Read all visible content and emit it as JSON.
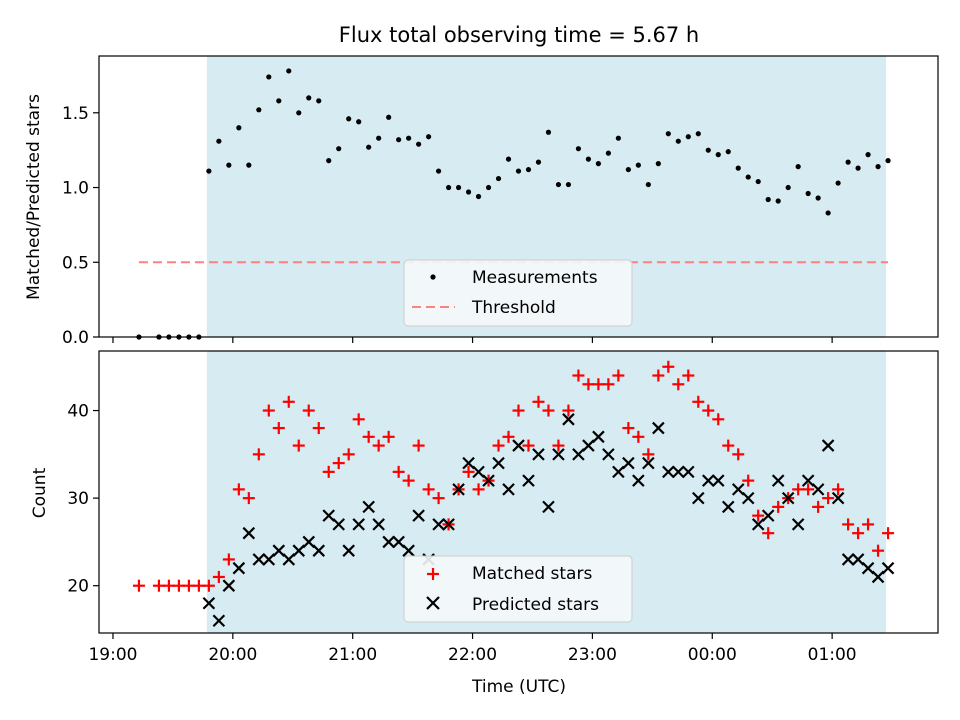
{
  "chart_data": [
    {
      "type": "scatter",
      "title": "Flux total observing time = 5.67 h",
      "xlabel": "",
      "ylabel": "Matched/Predicted stars",
      "xlim": [
        "18:53",
        "01:53"
      ],
      "ylim": [
        0,
        1.88
      ],
      "yticks": [
        0.0,
        0.5,
        1.0,
        1.5
      ],
      "ytick_labels": [
        "0.0",
        "0.5",
        "1.0",
        "1.5"
      ],
      "shaded_x": [
        "19:47",
        "01:27"
      ],
      "series": [
        {
          "name": "Measurements",
          "style": "dot",
          "color": "#000000",
          "points": [
            [
              "19:13",
              0.0
            ],
            [
              "19:23",
              0.0
            ],
            [
              "19:28",
              0.0
            ],
            [
              "19:33",
              0.0
            ],
            [
              "19:38",
              0.0
            ],
            [
              "19:43",
              0.0
            ],
            [
              "19:48",
              1.11
            ],
            [
              "19:53",
              1.31
            ],
            [
              "19:58",
              1.15
            ],
            [
              "20:03",
              1.4
            ],
            [
              "20:08",
              1.15
            ],
            [
              "20:13",
              1.52
            ],
            [
              "20:18",
              1.74
            ],
            [
              "20:23",
              1.58
            ],
            [
              "20:28",
              1.78
            ],
            [
              "20:33",
              1.5
            ],
            [
              "20:38",
              1.6
            ],
            [
              "20:43",
              1.58
            ],
            [
              "20:48",
              1.18
            ],
            [
              "20:53",
              1.26
            ],
            [
              "20:58",
              1.46
            ],
            [
              "21:03",
              1.44
            ],
            [
              "21:08",
              1.27
            ],
            [
              "21:13",
              1.33
            ],
            [
              "21:18",
              1.47
            ],
            [
              "21:23",
              1.32
            ],
            [
              "21:28",
              1.33
            ],
            [
              "21:33",
              1.29
            ],
            [
              "21:38",
              1.34
            ],
            [
              "21:43",
              1.11
            ],
            [
              "21:48",
              1.0
            ],
            [
              "21:53",
              1.0
            ],
            [
              "21:58",
              0.97
            ],
            [
              "22:03",
              0.94
            ],
            [
              "22:08",
              1.0
            ],
            [
              "22:13",
              1.06
            ],
            [
              "22:18",
              1.19
            ],
            [
              "22:23",
              1.11
            ],
            [
              "22:28",
              1.12
            ],
            [
              "22:33",
              1.17
            ],
            [
              "22:38",
              1.37
            ],
            [
              "22:43",
              1.02
            ],
            [
              "22:48",
              1.02
            ],
            [
              "22:53",
              1.26
            ],
            [
              "22:58",
              1.19
            ],
            [
              "23:03",
              1.16
            ],
            [
              "23:08",
              1.23
            ],
            [
              "23:13",
              1.33
            ],
            [
              "23:18",
              1.12
            ],
            [
              "23:23",
              1.15
            ],
            [
              "23:28",
              1.02
            ],
            [
              "23:33",
              1.16
            ],
            [
              "23:38",
              1.36
            ],
            [
              "23:43",
              1.31
            ],
            [
              "23:48",
              1.34
            ],
            [
              "23:53",
              1.36
            ],
            [
              "23:58",
              1.25
            ],
            [
              "00:03",
              1.22
            ],
            [
              "00:08",
              1.24
            ],
            [
              "00:13",
              1.13
            ],
            [
              "00:18",
              1.07
            ],
            [
              "00:23",
              1.04
            ],
            [
              "00:28",
              0.92
            ],
            [
              "00:33",
              0.91
            ],
            [
              "00:38",
              1.0
            ],
            [
              "00:43",
              1.14
            ],
            [
              "00:48",
              0.96
            ],
            [
              "00:53",
              0.93
            ],
            [
              "00:58",
              0.83
            ],
            [
              "01:03",
              1.03
            ],
            [
              "01:08",
              1.17
            ],
            [
              "01:13",
              1.13
            ],
            [
              "01:18",
              1.22
            ],
            [
              "01:23",
              1.14
            ],
            [
              "01:28",
              1.18
            ]
          ]
        },
        {
          "name": "Threshold",
          "style": "dashed-line",
          "color": "#ff8080",
          "points": [
            [
              "19:13",
              0.5
            ],
            [
              "01:28",
              0.5
            ]
          ]
        }
      ],
      "legend": "lower-center"
    },
    {
      "type": "scatter",
      "title": "",
      "xlabel": "Time (UTC)",
      "ylabel": "Count",
      "xlim": [
        "18:53",
        "01:53"
      ],
      "xticks": [
        "19:00",
        "20:00",
        "21:00",
        "22:00",
        "23:00",
        "00:00",
        "01:00"
      ],
      "ylim": [
        14.6,
        46.8
      ],
      "yticks": [
        20,
        30,
        40
      ],
      "shaded_x": [
        "19:47",
        "01:27"
      ],
      "series": [
        {
          "name": "Matched stars",
          "style": "plus",
          "color": "#ff0000",
          "points": [
            [
              "19:13",
              20
            ],
            [
              "19:23",
              20
            ],
            [
              "19:28",
              20
            ],
            [
              "19:33",
              20
            ],
            [
              "19:38",
              20
            ],
            [
              "19:43",
              20
            ],
            [
              "19:48",
              20
            ],
            [
              "19:53",
              21
            ],
            [
              "19:58",
              23
            ],
            [
              "20:03",
              31
            ],
            [
              "20:08",
              30
            ],
            [
              "20:13",
              35
            ],
            [
              "20:18",
              40
            ],
            [
              "20:23",
              38
            ],
            [
              "20:28",
              41
            ],
            [
              "20:33",
              36
            ],
            [
              "20:38",
              40
            ],
            [
              "20:43",
              38
            ],
            [
              "20:48",
              33
            ],
            [
              "20:53",
              34
            ],
            [
              "20:58",
              35
            ],
            [
              "21:03",
              39
            ],
            [
              "21:08",
              37
            ],
            [
              "21:13",
              36
            ],
            [
              "21:18",
              37
            ],
            [
              "21:23",
              33
            ],
            [
              "21:28",
              32
            ],
            [
              "21:33",
              36
            ],
            [
              "21:38",
              31
            ],
            [
              "21:43",
              30
            ],
            [
              "21:48",
              27
            ],
            [
              "21:53",
              31
            ],
            [
              "21:58",
              33
            ],
            [
              "22:03",
              31
            ],
            [
              "22:08",
              32
            ],
            [
              "22:13",
              36
            ],
            [
              "22:18",
              37
            ],
            [
              "22:23",
              40
            ],
            [
              "22:28",
              36
            ],
            [
              "22:33",
              41
            ],
            [
              "22:38",
              40
            ],
            [
              "22:43",
              36
            ],
            [
              "22:48",
              40
            ],
            [
              "22:53",
              44
            ],
            [
              "22:58",
              43
            ],
            [
              "23:03",
              43
            ],
            [
              "23:08",
              43
            ],
            [
              "23:13",
              44
            ],
            [
              "23:18",
              38
            ],
            [
              "23:23",
              37
            ],
            [
              "23:28",
              35
            ],
            [
              "23:33",
              44
            ],
            [
              "23:38",
              45
            ],
            [
              "23:43",
              43
            ],
            [
              "23:48",
              44
            ],
            [
              "23:53",
              41
            ],
            [
              "23:58",
              40
            ],
            [
              "00:03",
              39
            ],
            [
              "00:08",
              36
            ],
            [
              "00:13",
              35
            ],
            [
              "00:18",
              32
            ],
            [
              "00:23",
              28
            ],
            [
              "00:28",
              26
            ],
            [
              "00:33",
              29
            ],
            [
              "00:38",
              30
            ],
            [
              "00:43",
              31
            ],
            [
              "00:48",
              31
            ],
            [
              "00:53",
              29
            ],
            [
              "00:58",
              30
            ],
            [
              "01:03",
              31
            ],
            [
              "01:08",
              27
            ],
            [
              "01:13",
              26
            ],
            [
              "01:18",
              27
            ],
            [
              "01:23",
              24
            ],
            [
              "01:28",
              26
            ]
          ]
        },
        {
          "name": "Predicted stars",
          "style": "x",
          "color": "#000000",
          "points": [
            [
              "19:48",
              18
            ],
            [
              "19:53",
              16
            ],
            [
              "19:58",
              20
            ],
            [
              "20:03",
              22
            ],
            [
              "20:08",
              26
            ],
            [
              "20:13",
              23
            ],
            [
              "20:18",
              23
            ],
            [
              "20:23",
              24
            ],
            [
              "20:28",
              23
            ],
            [
              "20:33",
              24
            ],
            [
              "20:38",
              25
            ],
            [
              "20:43",
              24
            ],
            [
              "20:48",
              28
            ],
            [
              "20:53",
              27
            ],
            [
              "20:58",
              24
            ],
            [
              "21:03",
              27
            ],
            [
              "21:08",
              29
            ],
            [
              "21:13",
              27
            ],
            [
              "21:18",
              25
            ],
            [
              "21:23",
              25
            ],
            [
              "21:28",
              24
            ],
            [
              "21:33",
              28
            ],
            [
              "21:38",
              23
            ],
            [
              "21:43",
              27
            ],
            [
              "21:48",
              27
            ],
            [
              "21:53",
              31
            ],
            [
              "21:58",
              34
            ],
            [
              "22:03",
              33
            ],
            [
              "22:08",
              32
            ],
            [
              "22:13",
              34
            ],
            [
              "22:18",
              31
            ],
            [
              "22:23",
              36
            ],
            [
              "22:28",
              32
            ],
            [
              "22:33",
              35
            ],
            [
              "22:38",
              29
            ],
            [
              "22:43",
              35
            ],
            [
              "22:48",
              39
            ],
            [
              "22:53",
              35
            ],
            [
              "22:58",
              36
            ],
            [
              "23:03",
              37
            ],
            [
              "23:08",
              35
            ],
            [
              "23:13",
              33
            ],
            [
              "23:18",
              34
            ],
            [
              "23:23",
              32
            ],
            [
              "23:28",
              34
            ],
            [
              "23:33",
              38
            ],
            [
              "23:38",
              33
            ],
            [
              "23:43",
              33
            ],
            [
              "23:48",
              33
            ],
            [
              "23:53",
              30
            ],
            [
              "23:58",
              32
            ],
            [
              "00:03",
              32
            ],
            [
              "00:08",
              29
            ],
            [
              "00:13",
              31
            ],
            [
              "00:18",
              30
            ],
            [
              "00:23",
              27
            ],
            [
              "00:28",
              28
            ],
            [
              "00:33",
              32
            ],
            [
              "00:38",
              30
            ],
            [
              "00:43",
              27
            ],
            [
              "00:48",
              32
            ],
            [
              "00:53",
              31
            ],
            [
              "00:58",
              36
            ],
            [
              "01:03",
              30
            ],
            [
              "01:08",
              23
            ],
            [
              "01:13",
              23
            ],
            [
              "01:18",
              22
            ],
            [
              "01:23",
              21
            ],
            [
              "01:28",
              22
            ]
          ]
        }
      ],
      "legend": "lower-center"
    }
  ],
  "colors": {
    "shade": "#add8e6",
    "legend_bg": "#f5f8fa"
  }
}
